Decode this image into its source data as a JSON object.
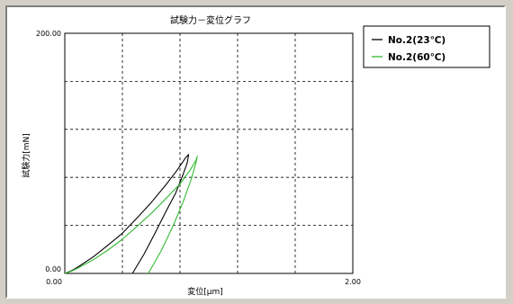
{
  "chart_data": {
    "type": "line",
    "title": "試験力－変位グラフ",
    "xlabel": "変位[μm]",
    "ylabel": "試験力[mN]",
    "xlim": [
      0,
      2
    ],
    "ylim": [
      0,
      200
    ],
    "x_tick_labels": [
      "0.00",
      "2.00"
    ],
    "y_tick_labels": [
      "0.00",
      "200.00"
    ],
    "grid": true,
    "grid_divisions": {
      "x": 5,
      "y": 5
    },
    "legend_position": "top-right",
    "series": [
      {
        "name": "No.2(23℃)",
        "color": "#000000",
        "x": [
          0.0,
          0.05,
          0.1,
          0.2,
          0.3,
          0.4,
          0.5,
          0.6,
          0.7,
          0.78,
          0.84,
          0.86,
          0.85,
          0.82,
          0.77,
          0.7,
          0.62,
          0.55,
          0.47
        ],
        "y": [
          0.0,
          2.5,
          6.0,
          14.0,
          23.5,
          33.5,
          46.0,
          59.0,
          73.5,
          86.0,
          96.5,
          99.0,
          92.0,
          82.0,
          67.0,
          51.0,
          32.0,
          16.0,
          0.0
        ]
      },
      {
        "name": "No.2(60℃)",
        "color": "#33bb33",
        "x": [
          0.0,
          0.05,
          0.1,
          0.2,
          0.3,
          0.4,
          0.5,
          0.6,
          0.7,
          0.8,
          0.87,
          0.91,
          0.92,
          0.91,
          0.88,
          0.82,
          0.75,
          0.67,
          0.58
        ],
        "y": [
          0.0,
          2.0,
          5.0,
          11.5,
          19.5,
          28.5,
          39.0,
          50.0,
          62.0,
          74.5,
          86.0,
          94.0,
          97.5,
          92.0,
          79.0,
          59.0,
          39.0,
          19.0,
          0.0
        ]
      }
    ]
  }
}
